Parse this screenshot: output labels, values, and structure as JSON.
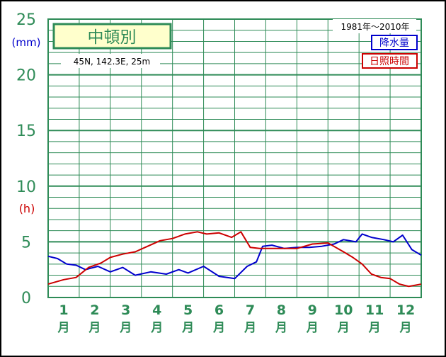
{
  "chart_data": {
    "type": "line",
    "title": "中頓別",
    "location": "45N, 142.3E, 25m",
    "period": "1981年〜2010年",
    "y_units": {
      "precip": "(mm)",
      "sun": "(h)"
    },
    "y_ticks": [
      0,
      5,
      10,
      15,
      20,
      25
    ],
    "ylim": [
      0,
      25
    ],
    "months": [
      "1",
      "2",
      "3",
      "4",
      "5",
      "6",
      "7",
      "8",
      "9",
      "10",
      "11",
      "12"
    ],
    "month_suffix": "月",
    "grid": true,
    "legend_position": "top-right",
    "series": [
      {
        "name": "降水量",
        "color": "#0000cc",
        "x": [
          0.0,
          0.3,
          0.6,
          0.9,
          1.2,
          1.6,
          2.0,
          2.4,
          2.8,
          3.3,
          3.8,
          4.2,
          4.5,
          5.0,
          5.5,
          6.0,
          6.4,
          6.7,
          6.9,
          7.2,
          7.6,
          8.0,
          8.4,
          8.8,
          9.2,
          9.5,
          9.9,
          10.1,
          10.4,
          10.8,
          11.1,
          11.4,
          11.7,
          12.0
        ],
        "values": [
          3.7,
          3.5,
          3.0,
          2.9,
          2.5,
          2.8,
          2.3,
          2.7,
          2.0,
          2.3,
          2.1,
          2.5,
          2.2,
          2.8,
          1.9,
          1.7,
          2.8,
          3.2,
          4.6,
          4.7,
          4.4,
          4.5,
          4.5,
          4.6,
          4.8,
          5.2,
          5.0,
          5.7,
          5.4,
          5.2,
          5.0,
          5.6,
          4.3,
          3.8
        ]
      },
      {
        "name": "日照時間",
        "color": "#cc0000",
        "x": [
          0.0,
          0.5,
          0.9,
          1.3,
          1.7,
          2.0,
          2.4,
          2.8,
          3.2,
          3.6,
          4.0,
          4.4,
          4.8,
          5.1,
          5.5,
          5.9,
          6.2,
          6.5,
          6.8,
          7.2,
          7.6,
          8.0,
          8.5,
          9.0,
          9.5,
          9.8,
          10.1,
          10.4,
          10.7,
          11.0,
          11.3,
          11.6,
          12.0
        ],
        "values": [
          1.2,
          1.6,
          1.8,
          2.7,
          3.1,
          3.6,
          3.9,
          4.1,
          4.6,
          5.1,
          5.3,
          5.7,
          5.9,
          5.7,
          5.8,
          5.4,
          5.9,
          4.5,
          4.4,
          4.4,
          4.4,
          4.4,
          4.8,
          4.9,
          4.1,
          3.6,
          3.0,
          2.1,
          1.8,
          1.7,
          1.2,
          1.0,
          1.2
        ]
      }
    ]
  }
}
